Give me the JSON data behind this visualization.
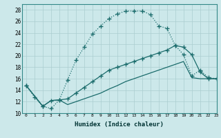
{
  "xlabel": "Humidex (Indice chaleur)",
  "background_color": "#cce8ea",
  "grid_color": "#aacdd0",
  "line_color": "#1a6b6b",
  "xlim": [
    -0.5,
    23
  ],
  "ylim": [
    10,
    29
  ],
  "xticks": [
    0,
    1,
    2,
    3,
    4,
    5,
    6,
    7,
    8,
    9,
    10,
    11,
    12,
    13,
    14,
    15,
    16,
    17,
    18,
    19,
    20,
    21,
    22,
    23
  ],
  "yticks": [
    10,
    12,
    14,
    16,
    18,
    20,
    22,
    24,
    26,
    28
  ],
  "curve1_x": [
    0,
    1,
    2,
    3,
    4,
    5,
    6,
    7,
    8,
    9,
    10,
    11,
    12,
    13,
    14,
    15,
    16,
    17,
    18,
    19,
    20,
    21,
    22,
    23
  ],
  "curve1_y": [
    14.8,
    12.8,
    11.2,
    10.8,
    12.3,
    15.8,
    19.2,
    21.5,
    23.8,
    25.2,
    26.5,
    27.3,
    27.8,
    27.8,
    27.8,
    27.2,
    25.2,
    24.8,
    21.8,
    20.2,
    16.5,
    17.5,
    16.2,
    16.0
  ],
  "curve2_x": [
    0,
    2,
    3,
    4,
    5,
    6,
    7,
    8,
    9,
    10,
    11,
    12,
    13,
    14,
    15,
    16,
    17,
    18,
    19,
    20,
    21,
    22,
    23
  ],
  "curve2_y": [
    14.8,
    11.2,
    12.2,
    12.3,
    12.5,
    13.5,
    14.5,
    15.5,
    16.5,
    17.5,
    18.0,
    18.5,
    19.0,
    19.5,
    20.0,
    20.5,
    21.0,
    21.8,
    21.5,
    20.2,
    17.2,
    16.0,
    16.0
  ],
  "curve3_x": [
    0,
    2,
    3,
    4,
    5,
    6,
    7,
    8,
    9,
    10,
    11,
    12,
    13,
    14,
    15,
    16,
    17,
    18,
    19,
    20,
    21,
    22,
    23
  ],
  "curve3_y": [
    14.8,
    11.2,
    12.2,
    12.3,
    11.5,
    12.0,
    12.5,
    13.0,
    13.5,
    14.2,
    14.8,
    15.5,
    16.0,
    16.5,
    17.0,
    17.5,
    18.0,
    18.5,
    19.0,
    16.2,
    16.0,
    16.0,
    16.0
  ]
}
